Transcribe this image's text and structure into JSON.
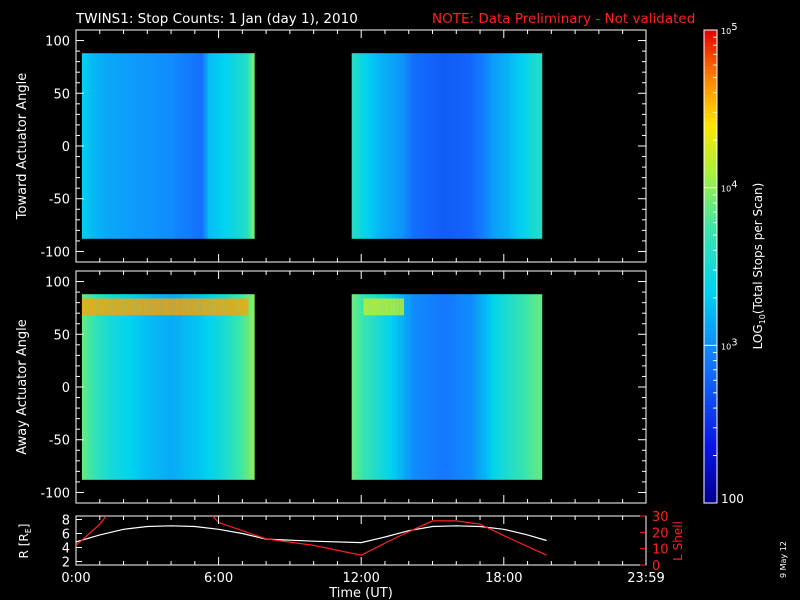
{
  "title": {
    "main": "TWINS1: Stop Counts:  1 Jan (day   1), 2010",
    "note": "NOTE: Data Preliminary - Not validated",
    "note_color": "#ff2020"
  },
  "footer_date": "9 May 12",
  "chart_data": [
    {
      "type": "heatmap",
      "panel": "toward",
      "ylabel": "Toward Actuator Angle",
      "ylim": [
        -110,
        110
      ],
      "yticks": [
        -100,
        -50,
        0,
        50,
        100
      ],
      "y_data_range": [
        -88,
        88
      ],
      "time_blocks_hours": [
        [
          0.25,
          7.5
        ],
        [
          11.6,
          19.6
        ]
      ],
      "column_profile_log10": [
        [
          0.25,
          3.35
        ],
        [
          0.6,
          3.25
        ],
        [
          1.2,
          3.15
        ],
        [
          2.0,
          3.1
        ],
        [
          3.0,
          3.05
        ],
        [
          4.0,
          3.0
        ],
        [
          5.3,
          2.85
        ],
        [
          5.6,
          3.25
        ],
        [
          6.5,
          3.4
        ],
        [
          7.2,
          3.6
        ],
        [
          7.45,
          3.95
        ],
        [
          11.6,
          3.6
        ],
        [
          12.1,
          3.4
        ],
        [
          12.8,
          3.2
        ],
        [
          13.7,
          3.05
        ],
        [
          14.2,
          2.85
        ],
        [
          15.5,
          2.75
        ],
        [
          16.6,
          2.8
        ],
        [
          17.2,
          2.95
        ],
        [
          17.6,
          3.1
        ],
        [
          18.2,
          3.2
        ],
        [
          18.8,
          3.35
        ],
        [
          19.4,
          3.55
        ]
      ]
    },
    {
      "type": "heatmap",
      "panel": "away",
      "ylabel": "Away Actuator Angle",
      "ylim": [
        -110,
        110
      ],
      "yticks": [
        -100,
        -50,
        0,
        50,
        100
      ],
      "y_data_range": [
        -88,
        88
      ],
      "time_blocks_hours": [
        [
          0.25,
          7.5
        ],
        [
          11.6,
          19.6
        ]
      ],
      "column_profile_log10": [
        [
          0.25,
          3.9
        ],
        [
          0.6,
          3.75
        ],
        [
          1.2,
          3.55
        ],
        [
          2.0,
          3.4
        ],
        [
          3.0,
          3.25
        ],
        [
          4.0,
          3.15
        ],
        [
          5.3,
          3.3
        ],
        [
          6.2,
          3.5
        ],
        [
          6.8,
          3.7
        ],
        [
          7.3,
          3.9
        ],
        [
          7.45,
          4.0
        ],
        [
          11.6,
          3.9
        ],
        [
          12.1,
          3.7
        ],
        [
          12.8,
          3.5
        ],
        [
          13.7,
          3.2
        ],
        [
          14.2,
          3.0
        ],
        [
          15.5,
          2.9
        ],
        [
          16.6,
          3.0
        ],
        [
          17.2,
          3.2
        ],
        [
          17.6,
          3.4
        ],
        [
          18.2,
          3.55
        ],
        [
          18.8,
          3.7
        ],
        [
          19.4,
          3.85
        ]
      ],
      "hot_band_degrees": [
        68,
        84
      ]
    },
    {
      "type": "line",
      "panel": "orbit",
      "ylabel_left": "R [R",
      "ylabel_left_sub": "E",
      "ylabel_left_end": "]",
      "ylabel_right": "L Shell",
      "ylim_left": [
        1.5,
        8.5
      ],
      "yticks_left": [
        2,
        4,
        6,
        8
      ],
      "ylim_right": [
        0,
        30
      ],
      "yticks_right": [
        0,
        10,
        20,
        30
      ],
      "series": [
        {
          "axis": "left",
          "color": "#ffffff",
          "x": [
            0.0,
            1.0,
            2.0,
            3.0,
            4.0,
            5.0,
            6.0,
            7.0,
            8.0,
            10.0,
            12.0,
            13.0,
            14.0,
            15.0,
            16.0,
            17.0,
            18.0,
            19.0,
            19.8
          ],
          "y": [
            4.8,
            5.8,
            6.6,
            7.0,
            7.1,
            7.0,
            6.6,
            6.0,
            5.2,
            4.9,
            4.7,
            5.5,
            6.4,
            7.0,
            7.1,
            7.0,
            6.6,
            5.8,
            5.0
          ]
        },
        {
          "axis": "right",
          "color": "#ff2020",
          "x": [
            0.0,
            1.0,
            1.5,
            5.5,
            6.0,
            8.0,
            10.0,
            12.0,
            13.5,
            15.0,
            16.0,
            17.0,
            18.0,
            19.8
          ],
          "y": [
            12,
            25,
            34,
            34,
            26,
            16,
            12,
            6,
            17,
            27,
            27,
            25,
            18,
            6
          ]
        }
      ]
    }
  ],
  "time_axis": {
    "xlim": [
      0,
      23.9833
    ],
    "tick_hours": [
      0,
      6,
      12,
      18,
      23.9833
    ],
    "tick_labels": [
      "0:00",
      "6:00",
      "12:00",
      "18:00",
      "23:59"
    ],
    "label": "Time (UT)"
  },
  "colorbar": {
    "vmin_log10": 2,
    "vmax_log10": 5,
    "label_main": "LOG",
    "label_sub": "10",
    "label_end": "(Total Stops per Scan)",
    "ticks": [
      {
        "value": 5,
        "base": "10",
        "exp": "5"
      },
      {
        "value": 4,
        "base": "10",
        "exp": "4"
      },
      {
        "value": 3,
        "base": "10",
        "exp": "3"
      },
      {
        "value": 2,
        "text": "100"
      }
    ]
  }
}
